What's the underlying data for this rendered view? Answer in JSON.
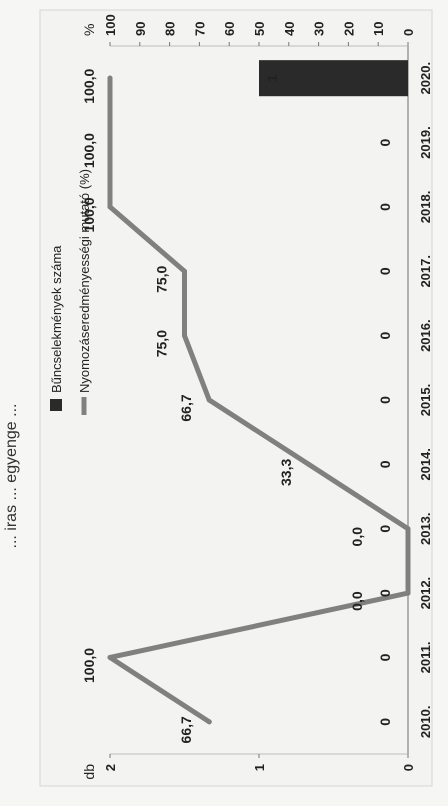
{
  "header": {
    "title_fragment": "... iras ... egyenge ..."
  },
  "chart_data": {
    "type": "bar+line",
    "categories": [
      "2010.",
      "2011.",
      "2012.",
      "2013.",
      "2014.",
      "2015.",
      "2016.",
      "2017.",
      "2018.",
      "2019.",
      "2020."
    ],
    "left_axis": {
      "unit": "db",
      "ticks": [
        "0",
        "1",
        "2"
      ],
      "range": [
        0,
        2
      ]
    },
    "right_axis": {
      "unit": "%",
      "ticks": [
        "0",
        "10",
        "20",
        "30",
        "40",
        "50",
        "60",
        "70",
        "80",
        "90",
        "100"
      ],
      "range": [
        0,
        100
      ]
    },
    "series": [
      {
        "name": "Bűncselekmények száma",
        "kind": "bar",
        "axis": "left",
        "color": "#2a2a2a",
        "values": [
          0,
          0,
          0,
          0,
          0,
          0,
          0,
          0,
          0,
          0,
          1
        ],
        "labels": [
          "0",
          "0",
          "0",
          "0",
          "0",
          "0",
          "0",
          "0",
          "0",
          "0",
          "1"
        ]
      },
      {
        "name": "Nyomozáseredményességi mutató (%)",
        "kind": "line",
        "axis": "right",
        "color": "#808080",
        "values": [
          66.7,
          100.0,
          0.0,
          0.0,
          33.3,
          66.7,
          75.0,
          75.0,
          100.0,
          100.0,
          100.0
        ],
        "labels": [
          "66,7",
          "100,0",
          "0,0",
          "0,0",
          "33,3",
          "66,7",
          "75,0",
          "75,0",
          "100,0",
          "100,0",
          "100,0"
        ]
      }
    ]
  }
}
